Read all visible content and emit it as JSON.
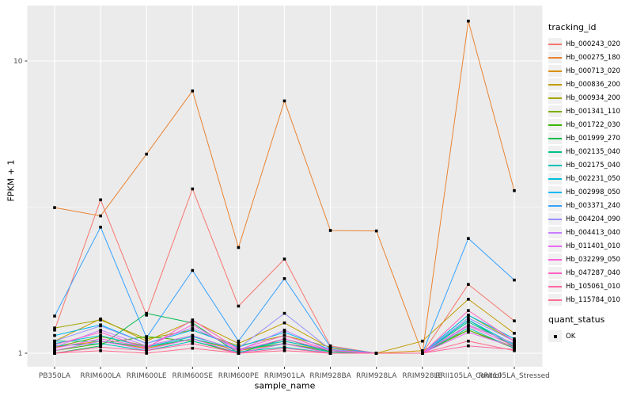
{
  "chart_data": {
    "type": "line",
    "title": "",
    "xlabel": "sample_name",
    "ylabel": "FPKM + 1",
    "y_scale": "log10",
    "y_ticks": [
      1,
      10
    ],
    "y_tick_labels": [
      "1",
      "10"
    ],
    "ylim": [
      0.91,
      15.5
    ],
    "grid": true,
    "legend_position": "right",
    "point_marker": "filled-black-square",
    "categories": [
      "PB350LA",
      "RRIM600LA",
      "RRIM600LE",
      "RRIM600SE",
      "RRIM600PE",
      "RRIM901LA",
      "RRIM928BA",
      "RRIM928LA",
      "RRIM928LE",
      "RRII105LA_Control",
      "RRII105LA_Stressed"
    ],
    "legend_series_title": "tracking_id",
    "legend_shape_title": "quant_status",
    "legend_shape_items": [
      {
        "label": "OK",
        "marker": "filled-square",
        "color": "#000000"
      }
    ],
    "series": [
      {
        "name": "Hb_000243_020",
        "color": "#F8766D",
        "values": [
          1.2,
          3.35,
          1.35,
          3.65,
          1.45,
          2.1,
          1.06,
          1.0,
          1.0,
          1.72,
          1.29
        ]
      },
      {
        "name": "Hb_000275_180",
        "color": "#EA8331",
        "values": [
          3.15,
          2.95,
          4.8,
          7.9,
          2.3,
          7.3,
          2.63,
          2.62,
          1.0,
          13.7,
          3.6
        ]
      },
      {
        "name": "Hb_000713_020",
        "color": "#D89000",
        "values": [
          1.05,
          1.1,
          1.04,
          1.12,
          1.02,
          1.08,
          1.02,
          1.0,
          1.02,
          1.2,
          1.05
        ]
      },
      {
        "name": "Hb_000836_200",
        "color": "#C09B00",
        "values": [
          1.1,
          1.31,
          1.1,
          1.29,
          1.08,
          1.27,
          1.04,
          1.0,
          1.1,
          1.53,
          1.17
        ]
      },
      {
        "name": "Hb_000934_200",
        "color": "#A3A500",
        "values": [
          1.22,
          1.3,
          1.12,
          1.2,
          1.06,
          1.15,
          1.05,
          1.0,
          1.0,
          1.35,
          1.1
        ]
      },
      {
        "name": "Hb_001341_110",
        "color": "#7CAE00",
        "values": [
          1.05,
          1.14,
          1.06,
          1.15,
          1.02,
          1.1,
          1.02,
          1.0,
          1.0,
          1.25,
          1.08
        ]
      },
      {
        "name": "Hb_001722_030",
        "color": "#39B600",
        "values": [
          1.02,
          1.08,
          1.14,
          1.1,
          1.0,
          1.08,
          1.0,
          1.0,
          1.0,
          1.2,
          1.04
        ]
      },
      {
        "name": "Hb_001999_270",
        "color": "#00BB4E",
        "values": [
          1.0,
          1.06,
          1.37,
          1.27,
          1.0,
          1.12,
          1.01,
          1.0,
          1.0,
          1.3,
          1.05
        ]
      },
      {
        "name": "Hb_002135_040",
        "color": "#00C087",
        "values": [
          1.1,
          1.1,
          1.05,
          1.12,
          1.03,
          1.08,
          1.01,
          1.0,
          1.0,
          1.28,
          1.06
        ]
      },
      {
        "name": "Hb_002175_040",
        "color": "#00C0B4",
        "values": [
          1.06,
          1.08,
          1.02,
          1.1,
          1.01,
          1.05,
          1.0,
          1.0,
          1.0,
          1.22,
          1.04
        ]
      },
      {
        "name": "Hb_002231_050",
        "color": "#00BFDA",
        "values": [
          1.08,
          1.15,
          1.05,
          1.14,
          1.03,
          1.1,
          1.02,
          1.0,
          1.0,
          1.3,
          1.07
        ]
      },
      {
        "name": "Hb_002998_050",
        "color": "#00B8F4",
        "values": [
          1.15,
          1.25,
          1.08,
          1.2,
          1.05,
          1.18,
          1.03,
          1.0,
          1.0,
          1.35,
          1.12
        ]
      },
      {
        "name": "Hb_003371_240",
        "color": "#35A2FF",
        "values": [
          1.34,
          2.7,
          1.13,
          1.92,
          1.1,
          1.8,
          1.05,
          1.0,
          1.0,
          2.47,
          1.78
        ]
      },
      {
        "name": "Hb_004204_090",
        "color": "#9590FF",
        "values": [
          1.1,
          1.24,
          1.08,
          1.22,
          1.04,
          1.37,
          1.03,
          1.0,
          1.0,
          1.32,
          1.1
        ]
      },
      {
        "name": "Hb_004413_040",
        "color": "#C77CFF",
        "values": [
          1.05,
          1.2,
          1.06,
          1.15,
          1.02,
          1.2,
          1.02,
          1.0,
          1.0,
          1.25,
          1.08
        ]
      },
      {
        "name": "Hb_011401_010",
        "color": "#E76BF3",
        "values": [
          1.02,
          1.1,
          1.03,
          1.12,
          1.0,
          1.08,
          1.0,
          1.0,
          1.0,
          1.18,
          1.05
        ]
      },
      {
        "name": "Hb_032299_050",
        "color": "#FA62DB",
        "values": [
          1.04,
          1.12,
          1.05,
          1.25,
          1.02,
          1.12,
          1.02,
          1.0,
          1.0,
          1.24,
          1.06
        ]
      },
      {
        "name": "Hb_047287_040",
        "color": "#FF61C3",
        "values": [
          1.07,
          1.18,
          1.04,
          1.3,
          1.03,
          1.15,
          1.02,
          1.0,
          1.0,
          1.4,
          1.1
        ]
      },
      {
        "name": "Hb_105061_010",
        "color": "#FF67A4",
        "values": [
          1.0,
          1.05,
          1.02,
          1.08,
          1.0,
          1.04,
          1.0,
          1.0,
          1.0,
          1.06,
          1.03
        ]
      },
      {
        "name": "Hb_115784_010",
        "color": "#FF6C90",
        "values": [
          1.0,
          1.02,
          1.0,
          1.04,
          1.0,
          1.02,
          1.0,
          1.0,
          1.0,
          1.1,
          1.02
        ]
      }
    ]
  },
  "style": {
    "panel_bg": "#EBEBEB",
    "grid_color": "#FFFFFF",
    "axis_text_color": "#4D4D4D",
    "tick_color": "#333333",
    "title_color": "#000000",
    "legend_key_bg": "#F0F0F0",
    "point_color": "#000000",
    "background": "#FFFFFF"
  }
}
